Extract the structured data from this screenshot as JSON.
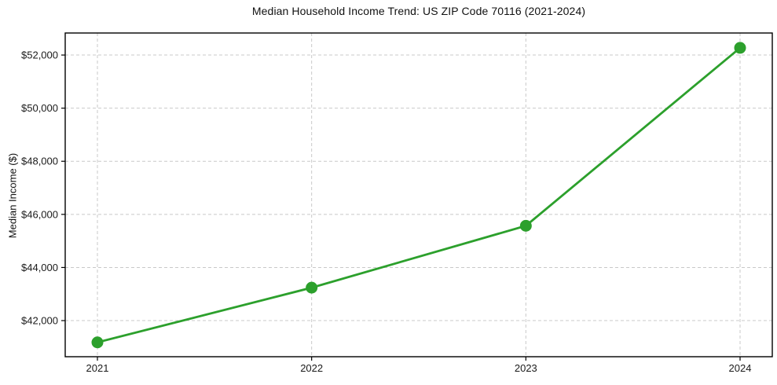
{
  "chart_data": {
    "type": "line",
    "title": "Median Household Income Trend: US ZIP Code 70116 (2021-2024)",
    "xlabel": "",
    "ylabel": "Median Income ($)",
    "x": [
      "2021",
      "2022",
      "2023",
      "2024"
    ],
    "series": [
      {
        "name": "Median Household Income",
        "values": [
          41180,
          43240,
          45570,
          52270
        ]
      }
    ],
    "yticks": [
      42000,
      44000,
      46000,
      48000,
      50000,
      52000
    ],
    "ytick_labels": [
      "$42,000",
      "$44,000",
      "$46,000",
      "$48,000",
      "$50,000",
      "$52,000"
    ],
    "ylim": [
      40640,
      52830
    ],
    "grid": "both",
    "grid_style": "dashed",
    "legend_position": "none",
    "colors": {
      "line": "#2ca02c",
      "marker": "#2ca02c",
      "grid": "#c9c9c9",
      "axis": "#000000",
      "tick_text": "#1a1a1a",
      "background": "#ffffff"
    }
  }
}
